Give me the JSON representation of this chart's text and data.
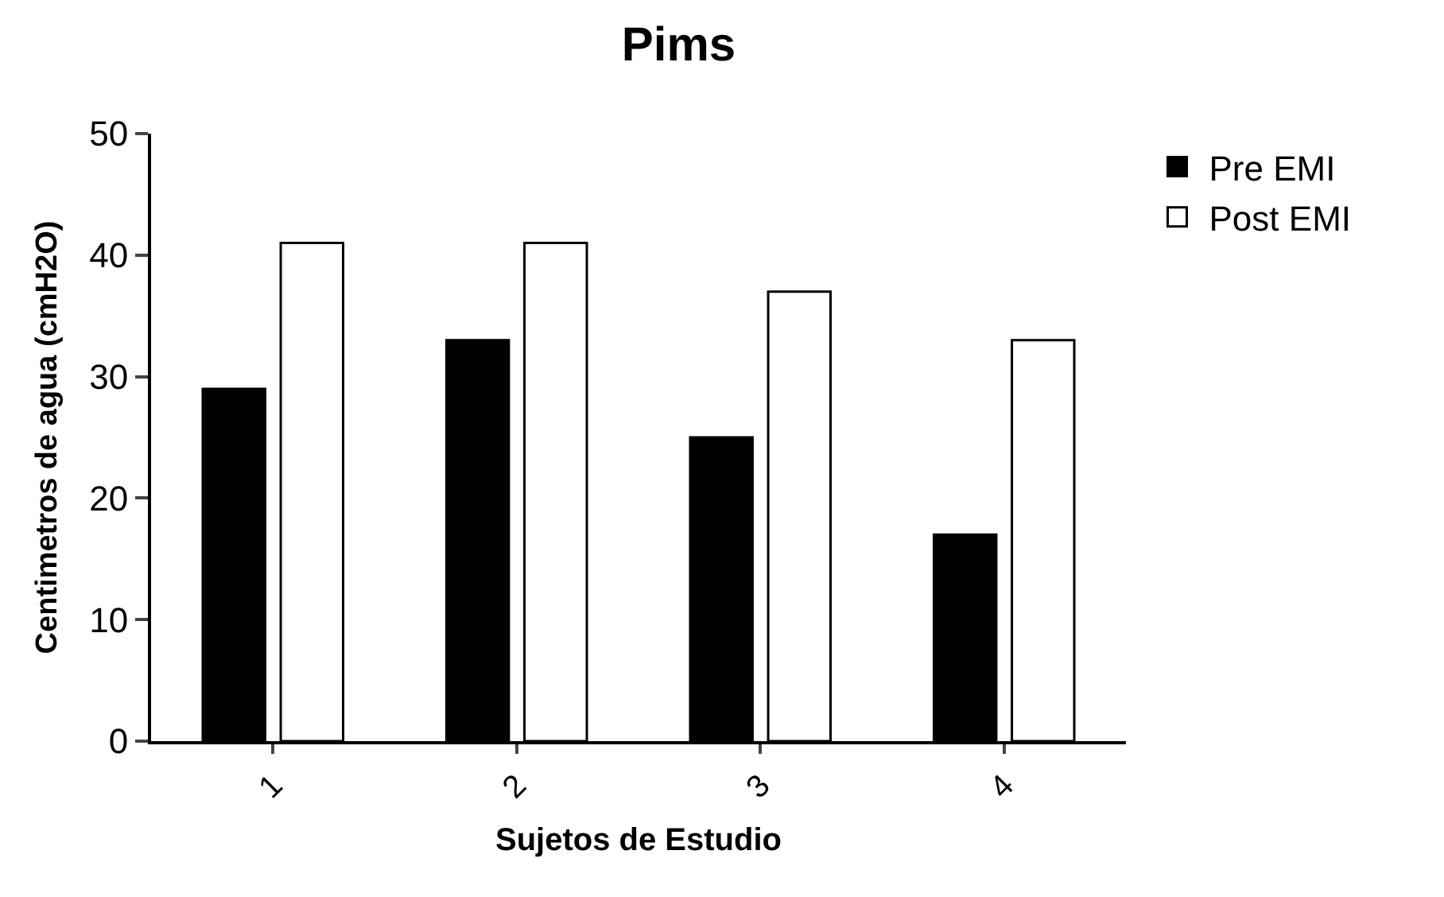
{
  "chart_data": {
    "type": "bar",
    "title": "Pims",
    "xlabel": "Sujetos de Estudio",
    "ylabel": "Centimetros de agua (cmH2O)",
    "categories": [
      "1",
      "2",
      "3",
      "4"
    ],
    "series": [
      {
        "name": "Pre EMI",
        "color": "#000000",
        "values": [
          29,
          33,
          25,
          17
        ]
      },
      {
        "name": "Post EMI",
        "color": "#ffffff",
        "values": [
          41,
          41,
          37,
          33
        ]
      }
    ],
    "ylim": [
      0,
      50
    ],
    "yticks": [
      0,
      10,
      20,
      30,
      40,
      50
    ],
    "legend": "top right"
  }
}
